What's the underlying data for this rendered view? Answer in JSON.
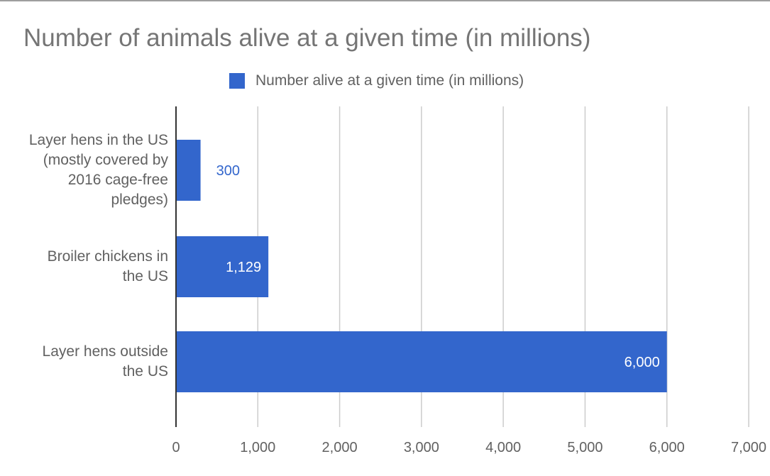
{
  "chart_data": {
    "type": "bar",
    "orientation": "horizontal",
    "title": "Number of animals alive at a given time (in millions)",
    "categories": [
      "Layer hens in the US (mostly covered by 2016 cage-free pledges)",
      "Broiler chickens in the US",
      "Layer hens outside the US"
    ],
    "category_lines": [
      [
        "Layer hens in the US",
        "(mostly covered by",
        "2016 cage-free",
        "pledges)"
      ],
      [
        "Broiler chickens in",
        "the US"
      ],
      [
        "Layer hens outside",
        "the US"
      ]
    ],
    "series": [
      {
        "name": "Number alive at a given time (in millions)",
        "values": [
          300,
          1129,
          6000
        ],
        "value_labels": [
          "300",
          "1,129",
          "6,000"
        ],
        "color": "#3366cc"
      }
    ],
    "xlim": [
      0,
      7000
    ],
    "x_ticks": [
      0,
      1000,
      2000,
      3000,
      4000,
      5000,
      6000,
      7000
    ],
    "x_tick_labels": [
      "0",
      "1,000",
      "2,000",
      "3,000",
      "4,000",
      "5,000",
      "6,000",
      "7,000"
    ],
    "grid": "vertical",
    "legend_position": "top",
    "colors": {
      "bar": "#3366cc",
      "grid": "#cccccc",
      "axis": "#333333",
      "text": "#616161",
      "title": "#757575"
    }
  }
}
